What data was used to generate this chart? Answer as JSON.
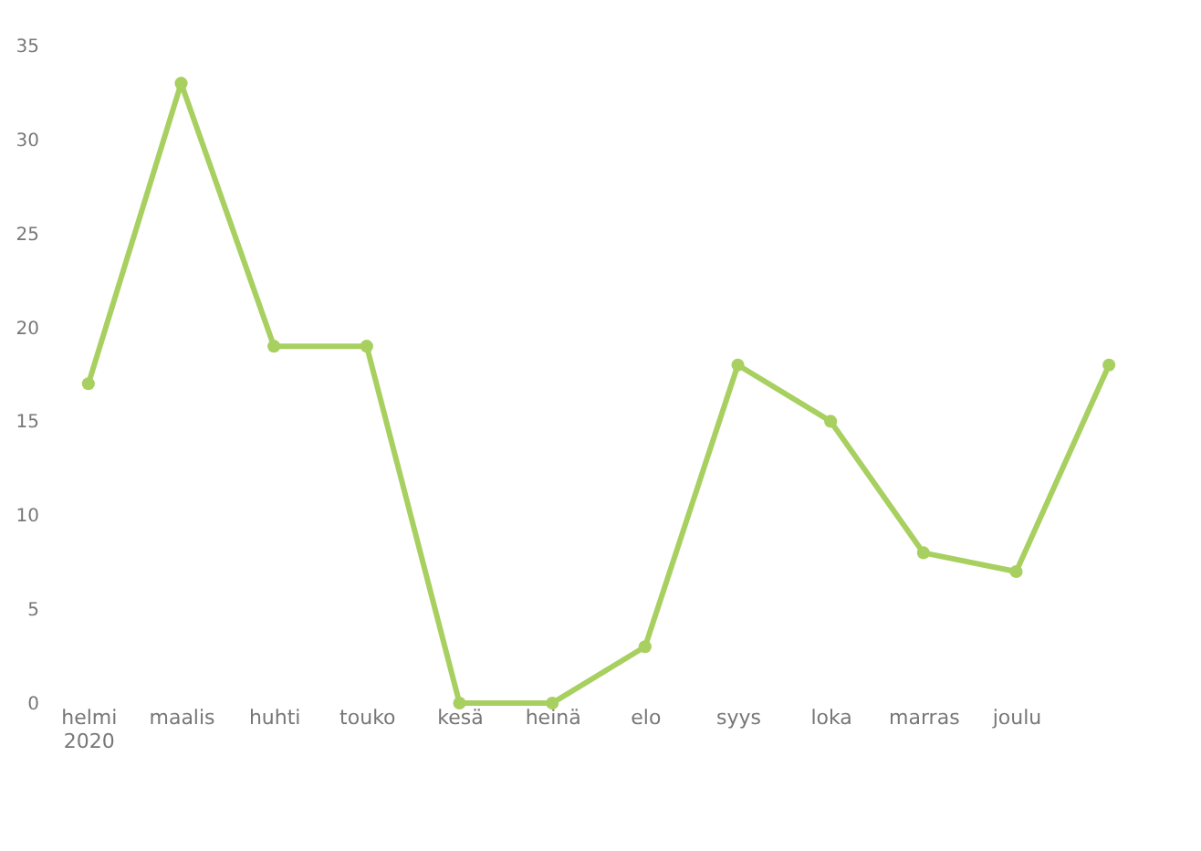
{
  "chart_data": {
    "type": "line",
    "categories": [
      "helmi 2020",
      "maalis",
      "huhti",
      "touko",
      "kesä",
      "heinä",
      "elo",
      "syys",
      "loka",
      "marras",
      "joulu",
      null
    ],
    "series": [
      {
        "color": "#a8d060",
        "values": [
          17,
          33,
          19,
          19,
          0,
          0,
          3,
          18,
          15,
          8,
          7,
          18
        ]
      }
    ],
    "ylim": [
      0,
      35
    ],
    "yticks": [
      0,
      5,
      10,
      15,
      20,
      25,
      30,
      35
    ],
    "marker": "circle",
    "line_style": "solid"
  }
}
